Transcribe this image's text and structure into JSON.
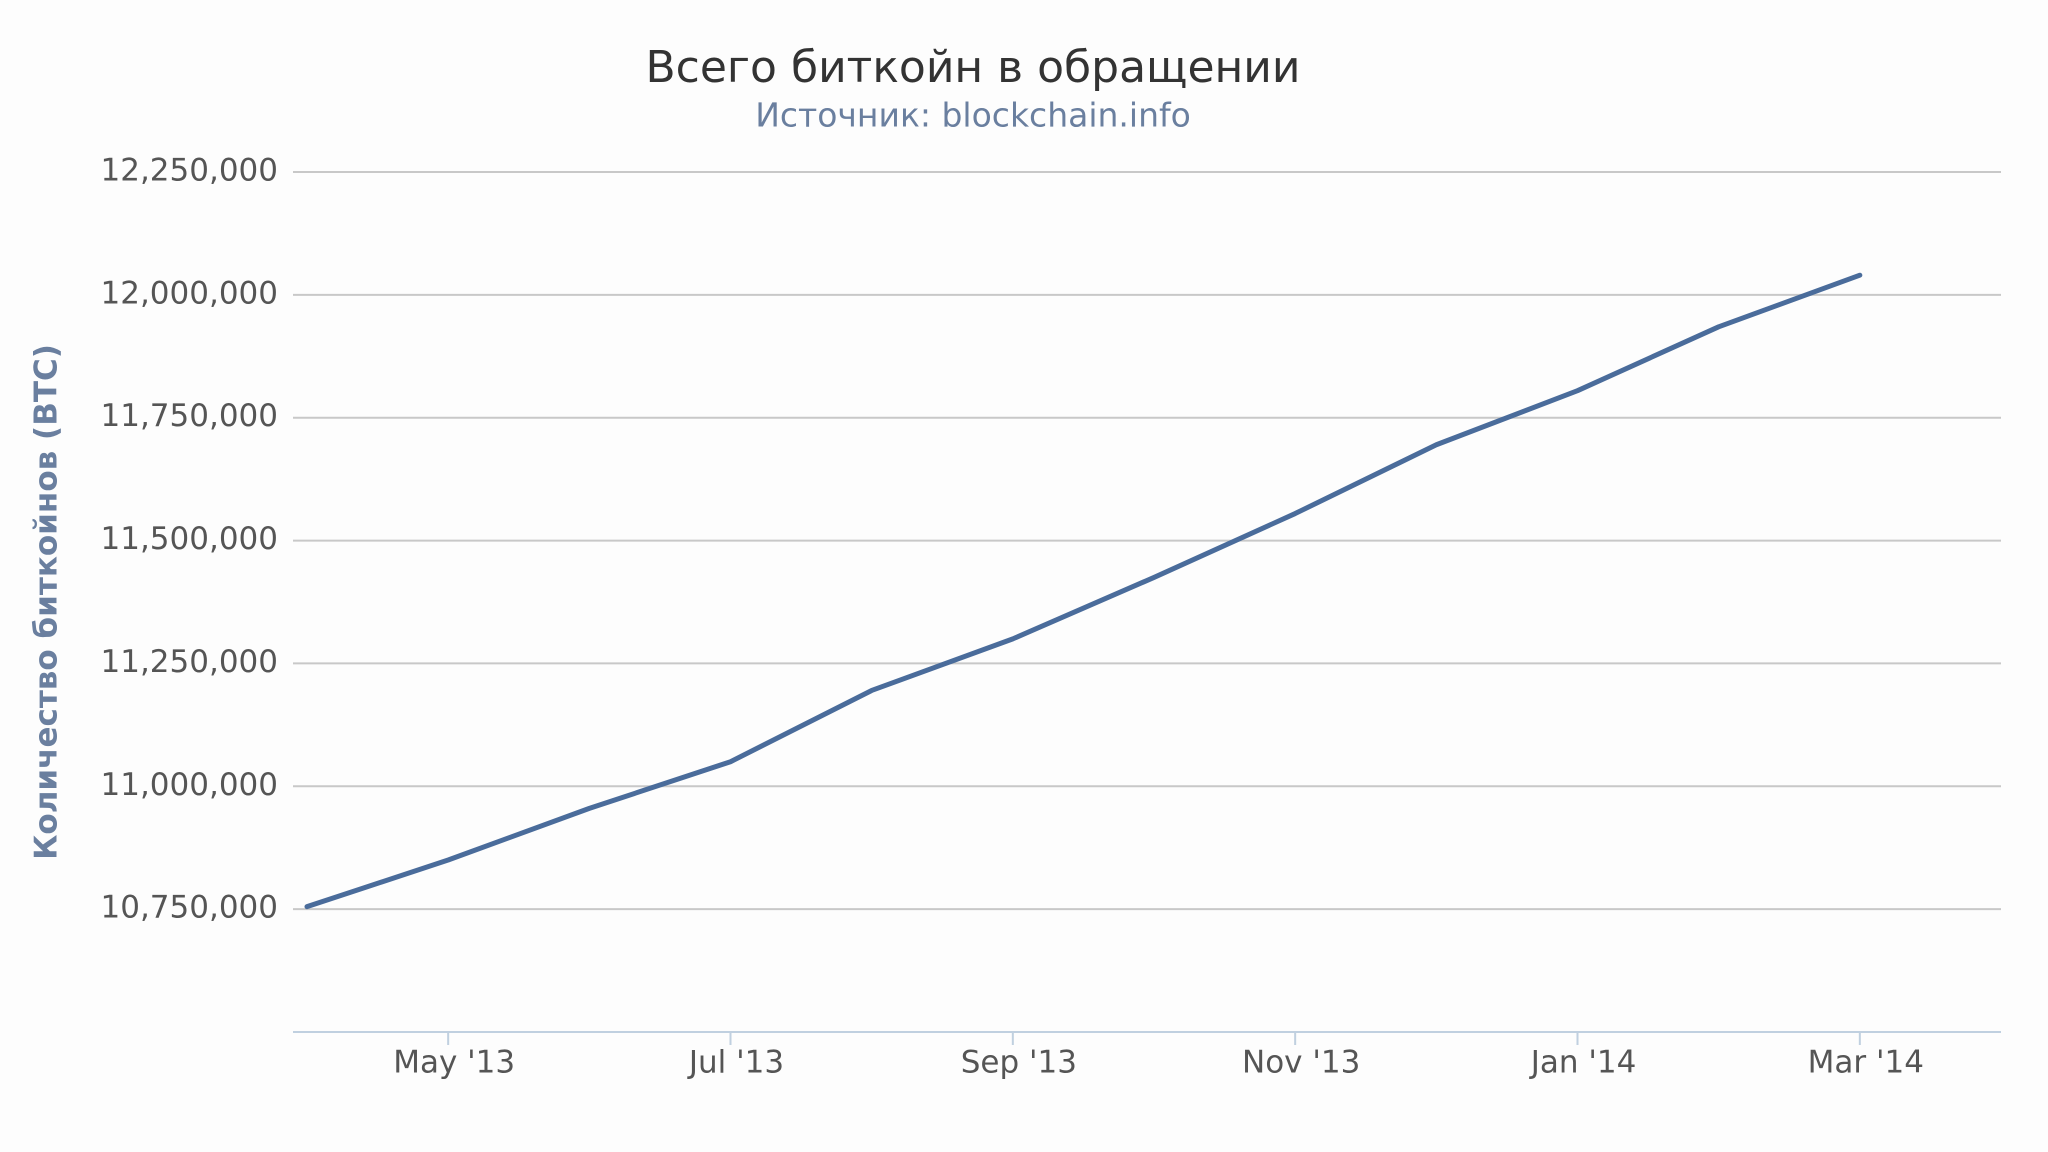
{
  "chart_data": {
    "type": "line",
    "title": "Всего биткойн в обращении",
    "subtitle": "Источник: blockchain.info",
    "y_label": "Количество биткойнов (BTC)",
    "x": [
      "2013-04",
      "2013-05",
      "2013-06",
      "2013-07",
      "2013-08",
      "2013-09",
      "2013-10",
      "2013-11",
      "2013-12",
      "2014-01",
      "2014-02",
      "2014-03"
    ],
    "values": [
      10755000,
      10850000,
      10955000,
      11050000,
      11195000,
      11300000,
      11425000,
      11555000,
      11695000,
      11805000,
      11935000,
      12040000
    ],
    "color": "#4a6c9b",
    "xlim": [
      "2013-04",
      "2014-04"
    ],
    "xticks": [
      {
        "value": "2013-05",
        "label": "May '13"
      },
      {
        "value": "2013-07",
        "label": "Jul '13"
      },
      {
        "value": "2013-09",
        "label": "Sep '13"
      },
      {
        "value": "2013-11",
        "label": "Nov '13"
      },
      {
        "value": "2014-01",
        "label": "Jan '14"
      },
      {
        "value": "2014-03",
        "label": "Mar '14"
      }
    ],
    "ylim": [
      10500000,
      12250000
    ],
    "yticks": [
      {
        "value": 10750000,
        "label": "10,750,000"
      },
      {
        "value": 11000000,
        "label": "11,000,000"
      },
      {
        "value": 11250000,
        "label": "11,250,000"
      },
      {
        "value": 11500000,
        "label": "11,500,000"
      },
      {
        "value": 11750000,
        "label": "11,750,000"
      },
      {
        "value": 12000000,
        "label": "12,000,000"
      },
      {
        "value": 12250000,
        "label": "12,250,000"
      }
    ],
    "grid": true
  }
}
